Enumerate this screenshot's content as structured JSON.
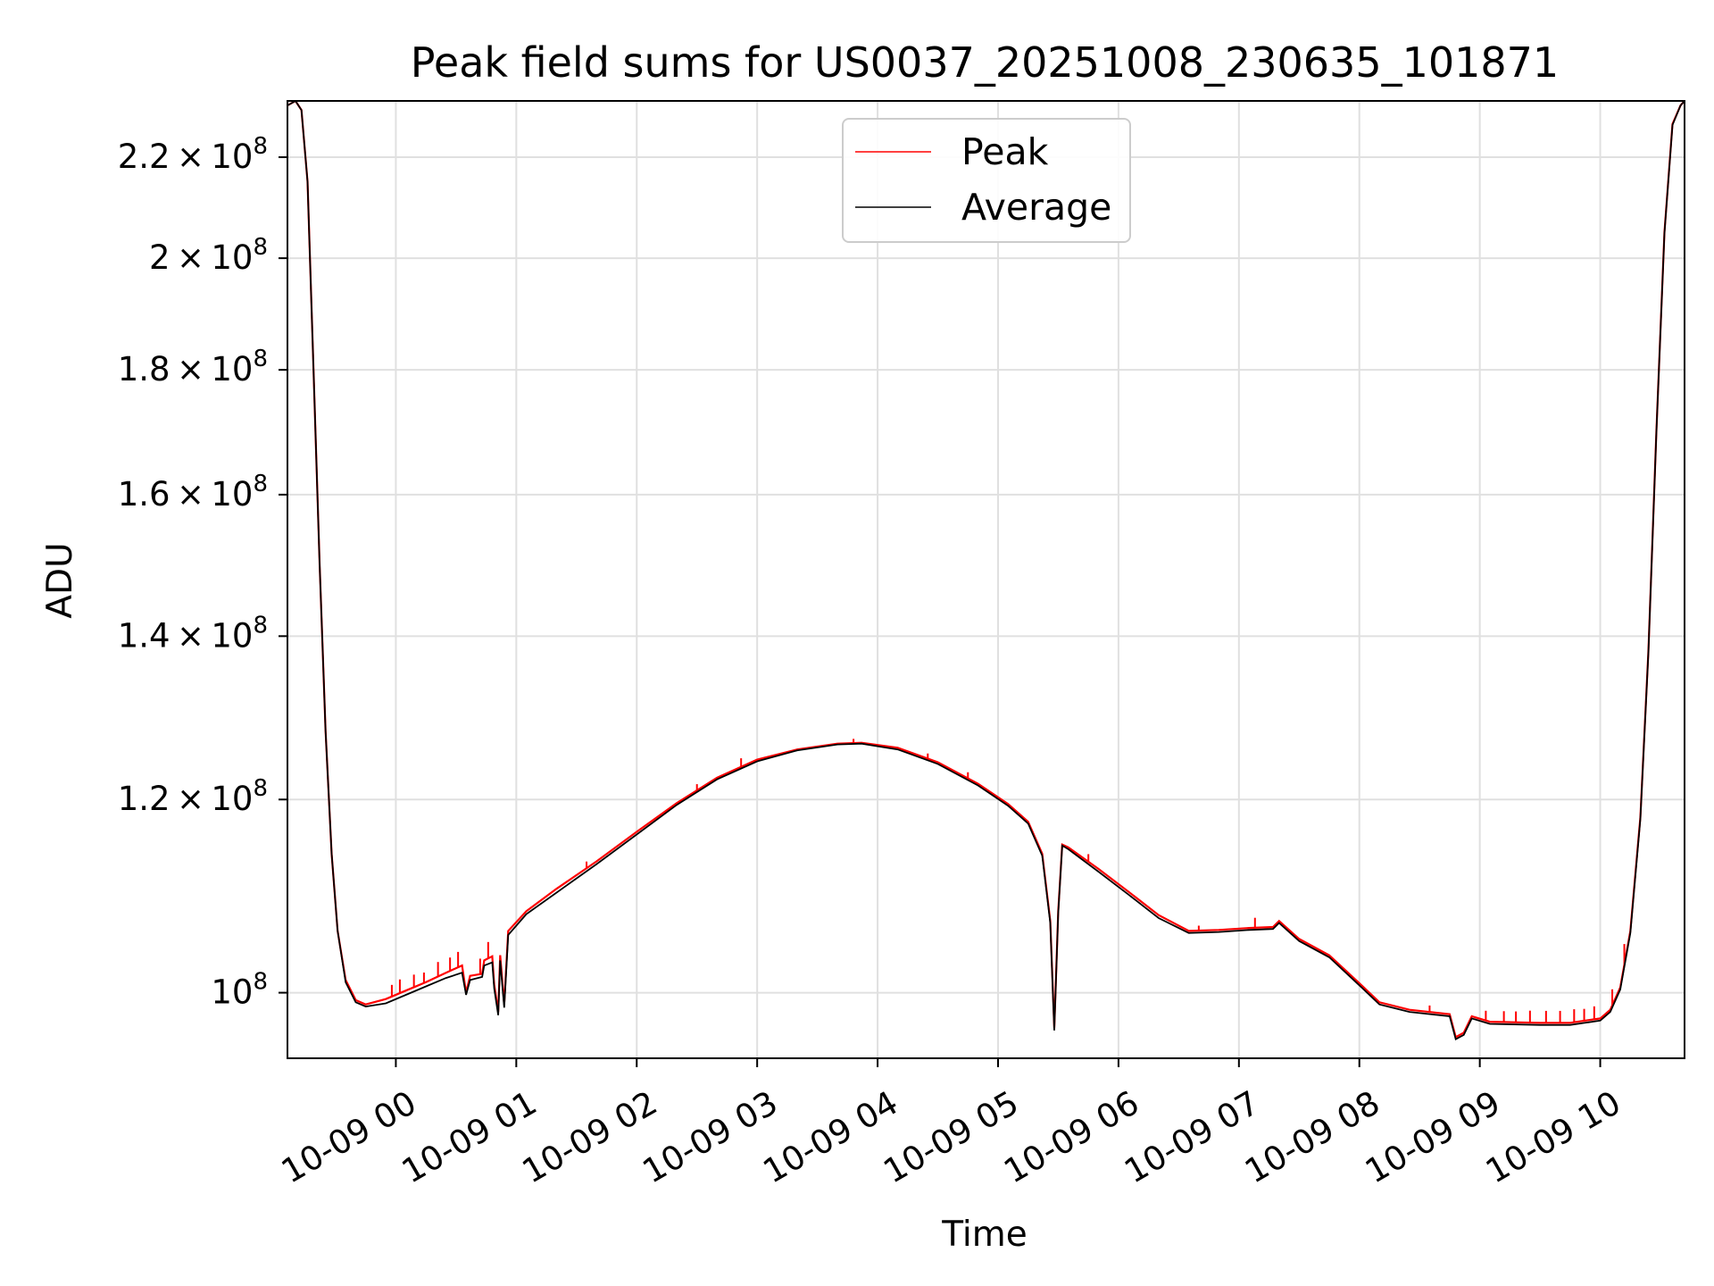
{
  "chart_data": {
    "type": "line",
    "title": "Peak field sums for US0037_20251008_230635_101871",
    "xlabel": "Time",
    "ylabel": "ADU",
    "y_scale": "log",
    "grid": true,
    "legend_position": "top-center",
    "xlim": [
      "2025-10-08 23:06",
      "2025-10-09 10:42"
    ],
    "ylim": [
      94000000,
      232000000
    ],
    "x_ticks": [
      {
        "value": "2025-10-09 00:00",
        "label": "10-09 00"
      },
      {
        "value": "2025-10-09 01:00",
        "label": "10-09 01"
      },
      {
        "value": "2025-10-09 02:00",
        "label": "10-09 02"
      },
      {
        "value": "2025-10-09 03:00",
        "label": "10-09 03"
      },
      {
        "value": "2025-10-09 04:00",
        "label": "10-09 04"
      },
      {
        "value": "2025-10-09 05:00",
        "label": "10-09 05"
      },
      {
        "value": "2025-10-09 06:00",
        "label": "10-09 06"
      },
      {
        "value": "2025-10-09 07:00",
        "label": "10-09 07"
      },
      {
        "value": "2025-10-09 08:00",
        "label": "10-09 08"
      },
      {
        "value": "2025-10-09 09:00",
        "label": "10-09 09"
      },
      {
        "value": "2025-10-09 10:00",
        "label": "10-09 10"
      }
    ],
    "y_ticks": [
      {
        "value": 100000000,
        "mantissa": "",
        "exponent": "8"
      },
      {
        "value": 120000000,
        "mantissa": "1.2",
        "exponent": "8"
      },
      {
        "value": 140000000,
        "mantissa": "1.4",
        "exponent": "8"
      },
      {
        "value": 160000000,
        "mantissa": "1.6",
        "exponent": "8"
      },
      {
        "value": 180000000,
        "mantissa": "1.8",
        "exponent": "8"
      },
      {
        "value": 200000000,
        "mantissa": "2",
        "exponent": "8"
      },
      {
        "value": 220000000,
        "mantissa": "2.2",
        "exponent": "8"
      }
    ],
    "series": [
      {
        "name": "Peak",
        "color": "#ff0000",
        "points": [
          [
            "2025-10-08 23:06",
            231000000
          ],
          [
            "2025-10-08 23:10",
            232000000
          ],
          [
            "2025-10-08 23:13",
            230000000
          ],
          [
            "2025-10-08 23:16",
            215000000
          ],
          [
            "2025-10-08 23:19",
            180000000
          ],
          [
            "2025-10-08 23:22",
            150000000
          ],
          [
            "2025-10-08 23:25",
            128000000
          ],
          [
            "2025-10-08 23:28",
            114000000
          ],
          [
            "2025-10-08 23:31",
            106000000
          ],
          [
            "2025-10-08 23:35",
            101200000
          ],
          [
            "2025-10-08 23:40",
            99300000
          ],
          [
            "2025-10-08 23:45",
            98900000
          ],
          [
            "2025-10-08 23:55",
            99400000
          ],
          [
            "2025-10-09 00:05",
            100200000
          ],
          [
            "2025-10-09 00:15",
            101000000
          ],
          [
            "2025-10-09 00:25",
            101900000
          ],
          [
            "2025-10-09 00:33",
            102600000
          ],
          [
            "2025-10-09 00:35",
            100000000
          ],
          [
            "2025-10-09 00:37",
            101600000
          ],
          [
            "2025-10-09 00:43",
            101800000
          ],
          [
            "2025-10-09 00:44",
            103100000
          ],
          [
            "2025-10-09 00:48",
            103500000
          ],
          [
            "2025-10-09 00:49",
            100800000
          ],
          [
            "2025-10-09 00:51",
            98200000
          ],
          [
            "2025-10-09 00:52",
            103600000
          ],
          [
            "2025-10-09 00:54",
            98900000
          ],
          [
            "2025-10-09 00:56",
            106000000
          ],
          [
            "2025-10-09 01:05",
            108000000
          ],
          [
            "2025-10-09 01:20",
            110300000
          ],
          [
            "2025-10-09 01:40",
            113200000
          ],
          [
            "2025-10-09 02:00",
            116400000
          ],
          [
            "2025-10-09 02:20",
            119600000
          ],
          [
            "2025-10-09 02:40",
            122500000
          ],
          [
            "2025-10-09 03:00",
            124600000
          ],
          [
            "2025-10-09 03:20",
            125800000
          ],
          [
            "2025-10-09 03:40",
            126500000
          ],
          [
            "2025-10-09 03:52",
            126600000
          ],
          [
            "2025-10-09 04:10",
            126000000
          ],
          [
            "2025-10-09 04:30",
            124300000
          ],
          [
            "2025-10-09 04:50",
            121800000
          ],
          [
            "2025-10-09 05:05",
            119500000
          ],
          [
            "2025-10-09 05:15",
            117500000
          ],
          [
            "2025-10-09 05:22",
            114000000
          ],
          [
            "2025-10-09 05:26",
            107000000
          ],
          [
            "2025-10-09 05:28",
            96700000
          ],
          [
            "2025-10-09 05:30",
            108000000
          ],
          [
            "2025-10-09 05:32",
            115000000
          ],
          [
            "2025-10-09 05:35",
            114700000
          ],
          [
            "2025-10-09 05:50",
            112400000
          ],
          [
            "2025-10-09 06:05",
            110000000
          ],
          [
            "2025-10-09 06:20",
            107600000
          ],
          [
            "2025-10-09 06:35",
            106000000
          ],
          [
            "2025-10-09 06:50",
            106100000
          ],
          [
            "2025-10-09 07:05",
            106300000
          ],
          [
            "2025-10-09 07:17",
            106400000
          ],
          [
            "2025-10-09 07:20",
            107000000
          ],
          [
            "2025-10-09 07:30",
            105200000
          ],
          [
            "2025-10-09 07:45",
            103600000
          ],
          [
            "2025-10-09 08:00",
            100900000
          ],
          [
            "2025-10-09 08:10",
            99100000
          ],
          [
            "2025-10-09 08:25",
            98400000
          ],
          [
            "2025-10-09 08:45",
            98000000
          ],
          [
            "2025-10-09 08:48",
            95900000
          ],
          [
            "2025-10-09 08:52",
            96300000
          ],
          [
            "2025-10-09 08:56",
            97800000
          ],
          [
            "2025-10-09 09:05",
            97300000
          ],
          [
            "2025-10-09 09:30",
            97200000
          ],
          [
            "2025-10-09 09:45",
            97200000
          ],
          [
            "2025-10-09 10:00",
            97600000
          ],
          [
            "2025-10-09 10:05",
            98400000
          ],
          [
            "2025-10-09 10:10",
            100500000
          ],
          [
            "2025-10-09 10:15",
            106000000
          ],
          [
            "2025-10-09 10:20",
            118000000
          ],
          [
            "2025-10-09 10:24",
            138000000
          ],
          [
            "2025-10-09 10:28",
            170000000
          ],
          [
            "2025-10-09 10:32",
            205000000
          ],
          [
            "2025-10-09 10:36",
            227000000
          ],
          [
            "2025-10-09 10:40",
            231000000
          ],
          [
            "2025-10-09 10:42",
            232000000
          ]
        ]
      },
      {
        "name": "Average",
        "color": "#000000",
        "points": [
          [
            "2025-10-08 23:06",
            231000000
          ],
          [
            "2025-10-08 23:10",
            232000000
          ],
          [
            "2025-10-08 23:13",
            230000000
          ],
          [
            "2025-10-08 23:16",
            215000000
          ],
          [
            "2025-10-08 23:19",
            180000000
          ],
          [
            "2025-10-08 23:22",
            150000000
          ],
          [
            "2025-10-08 23:25",
            128000000
          ],
          [
            "2025-10-08 23:28",
            114000000
          ],
          [
            "2025-10-08 23:31",
            106000000
          ],
          [
            "2025-10-08 23:35",
            101000000
          ],
          [
            "2025-10-08 23:40",
            99100000
          ],
          [
            "2025-10-08 23:45",
            98700000
          ],
          [
            "2025-10-08 23:55",
            99000000
          ],
          [
            "2025-10-09 00:05",
            99800000
          ],
          [
            "2025-10-09 00:15",
            100600000
          ],
          [
            "2025-10-09 00:25",
            101400000
          ],
          [
            "2025-10-09 00:33",
            101900000
          ],
          [
            "2025-10-09 00:35",
            99800000
          ],
          [
            "2025-10-09 00:37",
            101200000
          ],
          [
            "2025-10-09 00:43",
            101500000
          ],
          [
            "2025-10-09 00:44",
            102600000
          ],
          [
            "2025-10-09 00:48",
            102900000
          ],
          [
            "2025-10-09 00:49",
            100400000
          ],
          [
            "2025-10-09 00:51",
            97900000
          ],
          [
            "2025-10-09 00:52",
            103100000
          ],
          [
            "2025-10-09 00:54",
            98600000
          ],
          [
            "2025-10-09 00:56",
            105600000
          ],
          [
            "2025-10-09 01:05",
            107700000
          ],
          [
            "2025-10-09 01:20",
            109900000
          ],
          [
            "2025-10-09 01:40",
            112900000
          ],
          [
            "2025-10-09 02:00",
            116100000
          ],
          [
            "2025-10-09 02:20",
            119400000
          ],
          [
            "2025-10-09 02:40",
            122300000
          ],
          [
            "2025-10-09 03:00",
            124400000
          ],
          [
            "2025-10-09 03:20",
            125700000
          ],
          [
            "2025-10-09 03:40",
            126400000
          ],
          [
            "2025-10-09 03:52",
            126500000
          ],
          [
            "2025-10-09 04:10",
            125800000
          ],
          [
            "2025-10-09 04:30",
            124100000
          ],
          [
            "2025-10-09 04:50",
            121600000
          ],
          [
            "2025-10-09 05:05",
            119300000
          ],
          [
            "2025-10-09 05:15",
            117300000
          ],
          [
            "2025-10-09 05:22",
            113800000
          ],
          [
            "2025-10-09 05:26",
            106800000
          ],
          [
            "2025-10-09 05:28",
            96500000
          ],
          [
            "2025-10-09 05:30",
            107800000
          ],
          [
            "2025-10-09 05:32",
            114900000
          ],
          [
            "2025-10-09 05:35",
            114500000
          ],
          [
            "2025-10-09 05:50",
            112100000
          ],
          [
            "2025-10-09 06:05",
            109700000
          ],
          [
            "2025-10-09 06:20",
            107300000
          ],
          [
            "2025-10-09 06:35",
            105800000
          ],
          [
            "2025-10-09 06:50",
            105900000
          ],
          [
            "2025-10-09 07:05",
            106100000
          ],
          [
            "2025-10-09 07:17",
            106200000
          ],
          [
            "2025-10-09 07:20",
            106800000
          ],
          [
            "2025-10-09 07:30",
            105000000
          ],
          [
            "2025-10-09 07:45",
            103400000
          ],
          [
            "2025-10-09 08:00",
            100700000
          ],
          [
            "2025-10-09 08:10",
            98900000
          ],
          [
            "2025-10-09 08:25",
            98200000
          ],
          [
            "2025-10-09 08:45",
            97800000
          ],
          [
            "2025-10-09 08:48",
            95700000
          ],
          [
            "2025-10-09 08:52",
            96100000
          ],
          [
            "2025-10-09 08:56",
            97600000
          ],
          [
            "2025-10-09 09:05",
            97100000
          ],
          [
            "2025-10-09 09:30",
            97000000
          ],
          [
            "2025-10-09 09:45",
            97000000
          ],
          [
            "2025-10-09 10:00",
            97400000
          ],
          [
            "2025-10-09 10:05",
            98200000
          ],
          [
            "2025-10-09 10:10",
            100300000
          ],
          [
            "2025-10-09 10:15",
            105800000
          ],
          [
            "2025-10-09 10:20",
            117800000
          ],
          [
            "2025-10-09 10:24",
            137800000
          ],
          [
            "2025-10-09 10:28",
            169800000
          ],
          [
            "2025-10-09 10:32",
            204800000
          ],
          [
            "2025-10-09 10:36",
            226800000
          ],
          [
            "2025-10-09 10:40",
            231000000
          ],
          [
            "2025-10-09 10:42",
            232000000
          ]
        ]
      }
    ],
    "peak_excursions": [
      [
        "2025-10-08 23:58",
        1100000
      ],
      [
        "2025-10-09 00:02",
        1300000
      ],
      [
        "2025-10-09 00:09",
        1200000
      ],
      [
        "2025-10-09 00:14",
        1000000
      ],
      [
        "2025-10-09 00:21",
        1400000
      ],
      [
        "2025-10-09 00:27",
        1300000
      ],
      [
        "2025-10-09 00:31",
        1500000
      ],
      [
        "2025-10-09 00:42",
        1500000
      ],
      [
        "2025-10-09 00:46",
        1600000
      ],
      [
        "2025-10-09 01:35",
        700000
      ],
      [
        "2025-10-09 02:30",
        700000
      ],
      [
        "2025-10-09 02:52",
        1000000
      ],
      [
        "2025-10-09 03:48",
        500000
      ],
      [
        "2025-10-09 04:25",
        600000
      ],
      [
        "2025-10-09 04:45",
        700000
      ],
      [
        "2025-10-09 05:45",
        800000
      ],
      [
        "2025-10-09 06:40",
        500000
      ],
      [
        "2025-10-09 07:08",
        1000000
      ],
      [
        "2025-10-09 08:35",
        600000
      ],
      [
        "2025-10-09 09:03",
        900000
      ],
      [
        "2025-10-09 09:12",
        1000000
      ],
      [
        "2025-10-09 09:18",
        1000000
      ],
      [
        "2025-10-09 09:25",
        1100000
      ],
      [
        "2025-10-09 09:33",
        1100000
      ],
      [
        "2025-10-09 09:40",
        1100000
      ],
      [
        "2025-10-09 09:47",
        1200000
      ],
      [
        "2025-10-09 09:52",
        1100000
      ],
      [
        "2025-10-09 09:57",
        1200000
      ],
      [
        "2025-10-09 10:06",
        1500000
      ],
      [
        "2025-10-09 10:12",
        2000000
      ]
    ],
    "legend": [
      {
        "label": "Peak",
        "color": "#ff0000"
      },
      {
        "label": "Average",
        "color": "#000000"
      }
    ]
  }
}
